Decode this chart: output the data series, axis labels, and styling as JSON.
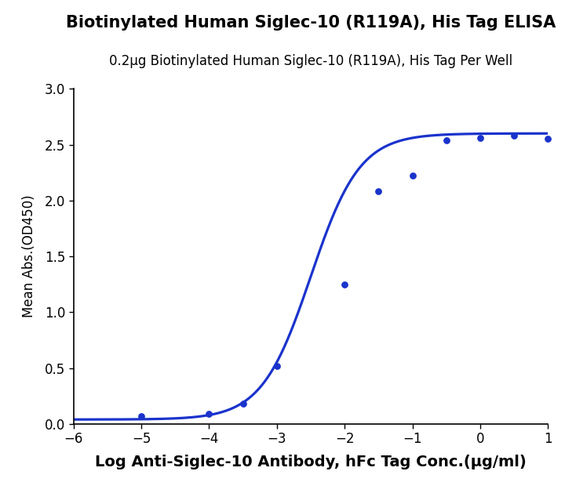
{
  "title": "Biotinylated Human Siglec-10 (R119A), His Tag ELISA",
  "subtitle": "0.2μg Biotinylated Human Siglec-10 (R119A), His Tag Per Well",
  "xlabel": "Log Anti-Siglec-10 Antibody, hFc Tag Conc.(μg/ml)",
  "ylabel": "Mean Abs.(OD450)",
  "title_fontsize": 15,
  "subtitle_fontsize": 12,
  "xlabel_fontsize": 14,
  "ylabel_fontsize": 12,
  "tick_fontsize": 12,
  "data_x": [
    -5,
    -4,
    -3.5,
    -3,
    -2,
    -1.5,
    -1,
    -0.5,
    0,
    0.5,
    1
  ],
  "data_y": [
    0.068,
    0.092,
    0.185,
    0.52,
    1.25,
    2.08,
    2.22,
    2.54,
    2.56,
    2.58,
    2.55
  ],
  "ec50_init": -2.5,
  "hill_init": 1.2,
  "bottom_init": 0.04,
  "top_init": 2.6,
  "xlim": [
    -6,
    1
  ],
  "ylim": [
    0,
    3.0
  ],
  "xticks": [
    -6,
    -5,
    -4,
    -3,
    -2,
    -1,
    0,
    1
  ],
  "yticks": [
    0.0,
    0.5,
    1.0,
    1.5,
    2.0,
    2.5,
    3.0
  ],
  "curve_color": "#1a33cc",
  "dot_color": "#1a33cc",
  "background_color": "#ffffff",
  "line_width": 2.3,
  "dot_size": 28
}
